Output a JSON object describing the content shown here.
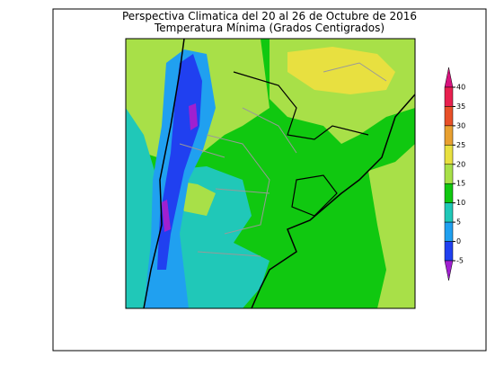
{
  "header": {
    "title": "Perspectiva Climatica del 20 al 26 de Octubre de 2016",
    "subtitle": "Temperatura Mínima (Grados Centigrados)"
  },
  "colorbar": {
    "ticks": [
      40,
      35,
      30,
      25,
      20,
      15,
      10,
      5,
      0,
      -5
    ],
    "colors": [
      "#d8127e",
      "#e8204f",
      "#e85028",
      "#e8a030",
      "#e8e040",
      "#a8e048",
      "#10c810",
      "#20c8b8",
      "#20a0f0",
      "#2040f0",
      "#a020d0"
    ]
  }
}
